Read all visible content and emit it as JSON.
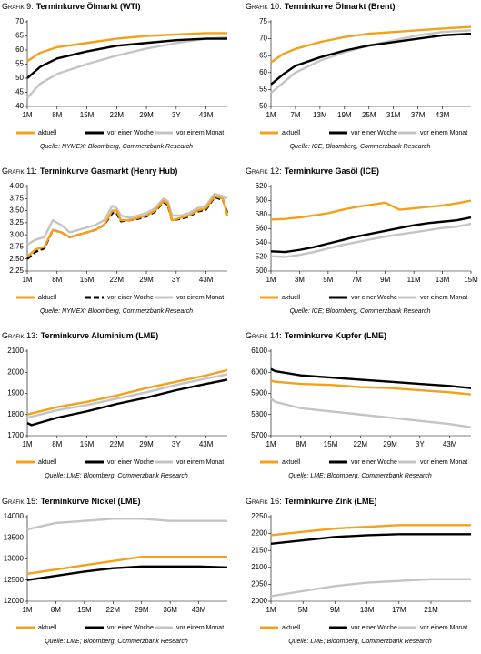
{
  "chart_data": [
    {
      "type": "line",
      "label": "Grafik 9:",
      "title": "Terminkurve Ölmarkt (WTI)",
      "source": "Quelle: NYMEX; Bloomberg, Commerzbank Research",
      "x": [
        1,
        4,
        8,
        15,
        22,
        29,
        36,
        43,
        48
      ],
      "xlim": [
        1,
        48
      ],
      "xticks": [
        {
          "value": 1,
          "label": "1M"
        },
        {
          "value": 8,
          "label": "8M"
        },
        {
          "value": 15,
          "label": "15M"
        },
        {
          "value": 22,
          "label": "22M"
        },
        {
          "value": 29,
          "label": "29M"
        },
        {
          "value": 36,
          "label": "3Y"
        },
        {
          "value": 43,
          "label": "43M"
        }
      ],
      "ylim": [
        40,
        70
      ],
      "yticks": [
        40,
        45,
        50,
        55,
        60,
        65,
        70
      ],
      "series": [
        {
          "name": "aktuell",
          "color": "#f5a01a",
          "values": [
            56,
            59,
            61,
            62.5,
            64,
            65,
            65.5,
            66,
            66
          ]
        },
        {
          "name": "vor einer Woche",
          "color": "#000000",
          "values": [
            50,
            54,
            57,
            59.5,
            61.5,
            62.5,
            63.5,
            64,
            64
          ]
        },
        {
          "name": "vor einem Monat",
          "color": "#c4c4c4",
          "values": [
            43,
            48,
            51.5,
            55,
            58,
            60.5,
            62.5,
            64,
            64.5
          ]
        }
      ]
    },
    {
      "type": "line",
      "label": "Grafik 10:",
      "title": "Terminkurve Ölmarkt (Brent)",
      "source": "Quelle: ICE, Bloomberg, Commerzbank Research",
      "x": [
        1,
        4,
        7,
        13,
        19,
        25,
        31,
        37,
        43,
        50
      ],
      "xlim": [
        1,
        50
      ],
      "xticks": [
        {
          "value": 1,
          "label": "1M"
        },
        {
          "value": 7,
          "label": "7M"
        },
        {
          "value": 13,
          "label": "13M"
        },
        {
          "value": 19,
          "label": "19M"
        },
        {
          "value": 25,
          "label": "25M"
        },
        {
          "value": 31,
          "label": "31M"
        },
        {
          "value": 37,
          "label": "37M"
        },
        {
          "value": 43,
          "label": "43M"
        }
      ],
      "ylim": [
        50,
        75
      ],
      "yticks": [
        50,
        55,
        60,
        65,
        70,
        75
      ],
      "series": [
        {
          "name": "aktuell",
          "color": "#f5a01a",
          "values": [
            63,
            65.5,
            67,
            69,
            70.5,
            71.5,
            72,
            72.5,
            73,
            73.5
          ]
        },
        {
          "name": "vor einer Woche",
          "color": "#000000",
          "values": [
            56.5,
            59.5,
            62,
            64.5,
            66.5,
            68,
            69,
            70,
            71,
            71.5
          ]
        },
        {
          "name": "vor einem Monat",
          "color": "#c4c4c4",
          "values": [
            54,
            57,
            60,
            63.5,
            66,
            68,
            69.5,
            71,
            72,
            72.5
          ]
        }
      ]
    },
    {
      "type": "line",
      "label": "Grafik 11:",
      "title": "Terminkurve Gasmarkt (Henry Hub)",
      "source": "Quelle: NYMEX; Bloomberg, Commerzbank Research",
      "x": [
        1,
        3,
        5,
        7,
        9,
        11,
        13,
        15,
        17,
        19,
        21,
        22,
        23,
        25,
        27,
        29,
        31,
        33,
        34,
        35,
        37,
        39,
        41,
        43,
        45,
        47,
        48
      ],
      "xlim": [
        1,
        48
      ],
      "xticks": [
        {
          "value": 1,
          "label": "1M"
        },
        {
          "value": 8,
          "label": "8M"
        },
        {
          "value": 15,
          "label": "15M"
        },
        {
          "value": 22,
          "label": "22M"
        },
        {
          "value": 29,
          "label": "29M"
        },
        {
          "value": 36,
          "label": "3Y"
        },
        {
          "value": 43,
          "label": "43M"
        }
      ],
      "ylim": [
        2.25,
        4
      ],
      "yticks": [
        2.25,
        {
          "value": 2.5,
          "label": "2.50"
        },
        2.75,
        {
          "value": 3,
          "label": "3.00"
        },
        3.25,
        {
          "value": 3.5,
          "label": "3.50"
        },
        3.75,
        {
          "value": 4,
          "label": "4.00"
        }
      ],
      "series": [
        {
          "name": "aktuell",
          "color": "#f5a01a",
          "values": [
            2.55,
            2.7,
            2.75,
            3.1,
            3.05,
            2.95,
            3.0,
            3.05,
            3.1,
            3.2,
            3.5,
            3.5,
            3.3,
            3.3,
            3.35,
            3.4,
            3.5,
            3.7,
            3.65,
            3.3,
            3.35,
            3.4,
            3.5,
            3.55,
            3.8,
            3.75,
            3.4
          ]
        },
        {
          "name": "vor einer Woche",
          "color": "#000000",
          "dashed": true,
          "values": [
            2.5,
            2.65,
            2.72,
            3.1,
            3.05,
            2.95,
            3.0,
            3.05,
            3.1,
            3.2,
            3.45,
            3.45,
            3.28,
            3.3,
            3.33,
            3.38,
            3.48,
            3.68,
            3.62,
            3.3,
            3.33,
            3.38,
            3.48,
            3.52,
            3.78,
            3.72,
            3.45
          ]
        },
        {
          "name": "vor einem Monat",
          "color": "#c4c4c4",
          "values": [
            2.8,
            2.9,
            2.95,
            3.3,
            3.2,
            3.05,
            3.1,
            3.15,
            3.2,
            3.3,
            3.6,
            3.55,
            3.4,
            3.35,
            3.4,
            3.45,
            3.55,
            3.75,
            3.7,
            3.4,
            3.4,
            3.45,
            3.55,
            3.6,
            3.85,
            3.8,
            3.75
          ]
        }
      ]
    },
    {
      "type": "line",
      "label": "Grafik 12:",
      "title": "Terminkurve Gasöl (ICE)",
      "source": "Quelle: ICE; Bloomberg, Commerzbank Research",
      "x": [
        1,
        2,
        3,
        4,
        5,
        6,
        7,
        8,
        9,
        10,
        11,
        12,
        13,
        14,
        15
      ],
      "xlim": [
        1,
        15
      ],
      "xticks": [
        {
          "value": 1,
          "label": "1M"
        },
        {
          "value": 3,
          "label": "3M"
        },
        {
          "value": 5,
          "label": "5M"
        },
        {
          "value": 7,
          "label": "7M"
        },
        {
          "value": 9,
          "label": "9M"
        },
        {
          "value": 11,
          "label": "11M"
        },
        {
          "value": 13,
          "label": "13M"
        },
        {
          "value": 15,
          "label": "15M"
        }
      ],
      "ylim": [
        500,
        620
      ],
      "yticks": [
        500,
        520,
        540,
        560,
        580,
        600,
        620
      ],
      "series": [
        {
          "name": "aktuell",
          "color": "#f5a01a",
          "values": [
            573,
            574,
            576,
            579,
            582,
            587,
            591,
            594,
            597,
            587,
            589,
            591,
            593,
            596,
            600
          ]
        },
        {
          "name": "vor einer Woche",
          "color": "#000000",
          "values": [
            528,
            527,
            530,
            534,
            539,
            544,
            549,
            553,
            557,
            561,
            565,
            568,
            570,
            572,
            576
          ]
        },
        {
          "name": "vor einem Monat",
          "color": "#c4c4c4",
          "values": [
            521,
            520,
            523,
            527,
            532,
            537,
            541,
            545,
            549,
            552,
            555,
            558,
            561,
            563,
            567
          ]
        }
      ]
    },
    {
      "type": "line",
      "label": "Grafik 13:",
      "title": "Terminkurve Aluminium (LME)",
      "source": "Quelle: LME; Bloomberg, Commerzbank Research",
      "x": [
        1,
        2,
        8,
        15,
        22,
        29,
        36,
        43,
        48
      ],
      "xlim": [
        1,
        48
      ],
      "xticks": [
        {
          "value": 1,
          "label": "1M"
        },
        {
          "value": 8,
          "label": "8M"
        },
        {
          "value": 15,
          "label": "15M"
        },
        {
          "value": 22,
          "label": "22M"
        },
        {
          "value": 29,
          "label": "29M"
        },
        {
          "value": 36,
          "label": "3Y"
        },
        {
          "value": 43,
          "label": "43M"
        }
      ],
      "ylim": [
        1700,
        2100
      ],
      "yticks": [
        1700,
        1800,
        1900,
        2000,
        2100
      ],
      "series": [
        {
          "name": "aktuell",
          "color": "#f5a01a",
          "values": [
            1800,
            1805,
            1835,
            1860,
            1890,
            1925,
            1955,
            1985,
            2010
          ]
        },
        {
          "name": "vor einer Woche",
          "color": "#000000",
          "values": [
            1760,
            1750,
            1785,
            1815,
            1850,
            1880,
            1915,
            1945,
            1965
          ]
        },
        {
          "name": "vor einem Monat",
          "color": "#c4c4c4",
          "values": [
            1785,
            1790,
            1820,
            1845,
            1875,
            1905,
            1940,
            1970,
            1990
          ]
        }
      ]
    },
    {
      "type": "line",
      "label": "Grafik 14:",
      "title": "Terminkurve Kupfer (LME)",
      "source": "Quelle: LME; Bloomberg, Commerzbank Research",
      "x": [
        1,
        2,
        8,
        15,
        22,
        29,
        36,
        43,
        48
      ],
      "xlim": [
        1,
        48
      ],
      "xticks": [
        {
          "value": 1,
          "label": "1M"
        },
        {
          "value": 8,
          "label": "8M"
        },
        {
          "value": 15,
          "label": "15M"
        },
        {
          "value": 22,
          "label": "22M"
        },
        {
          "value": 29,
          "label": "29M"
        },
        {
          "value": 36,
          "label": "3Y"
        },
        {
          "value": 43,
          "label": "43M"
        }
      ],
      "ylim": [
        5700,
        6100
      ],
      "yticks": [
        5700,
        5800,
        5900,
        6000,
        6100
      ],
      "series": [
        {
          "name": "aktuell",
          "color": "#f5a01a",
          "values": [
            5960,
            5955,
            5945,
            5940,
            5930,
            5925,
            5915,
            5905,
            5895
          ]
        },
        {
          "name": "vor einer Woche",
          "color": "#000000",
          "values": [
            6015,
            6005,
            5985,
            5975,
            5965,
            5955,
            5945,
            5935,
            5925
          ]
        },
        {
          "name": "vor einem Monat",
          "color": "#c4c4c4",
          "values": [
            5875,
            5860,
            5830,
            5815,
            5800,
            5785,
            5770,
            5755,
            5740
          ]
        }
      ]
    },
    {
      "type": "line",
      "label": "Grafik 15:",
      "title": "Terminkurve Nickel (LME)",
      "source": "Quelle: LME; Bloomberg, Commerzbank Research",
      "x": [
        1,
        8,
        15,
        22,
        29,
        36,
        43,
        50
      ],
      "xlim": [
        1,
        50
      ],
      "xticks": [
        {
          "value": 1,
          "label": "1M"
        },
        {
          "value": 8,
          "label": "8M"
        },
        {
          "value": 15,
          "label": "15M"
        },
        {
          "value": 22,
          "label": "22M"
        },
        {
          "value": 29,
          "label": "29M"
        },
        {
          "value": 36,
          "label": "36M"
        },
        {
          "value": 43,
          "label": "43M"
        }
      ],
      "ylim": [
        12000,
        14000
      ],
      "yticks": [
        12000,
        12500,
        13000,
        13500,
        14000
      ],
      "series": [
        {
          "name": "aktuell",
          "color": "#f5a01a",
          "values": [
            12650,
            12750,
            12850,
            12950,
            13050,
            13050,
            13050,
            13050
          ]
        },
        {
          "name": "vor einer Woche",
          "color": "#000000",
          "values": [
            12500,
            12600,
            12700,
            12780,
            12820,
            12820,
            12820,
            12800
          ]
        },
        {
          "name": "vor einem Monat",
          "color": "#c4c4c4",
          "values": [
            13700,
            13850,
            13900,
            13950,
            13950,
            13900,
            13900,
            13900
          ]
        }
      ]
    },
    {
      "type": "line",
      "label": "Grafik 16:",
      "title": "Terminkurve Zink (LME)",
      "source": "Quelle: LME; Bloomberg, Commerzbank Research",
      "x": [
        1,
        5,
        9,
        13,
        17,
        21,
        26
      ],
      "xlim": [
        1,
        26
      ],
      "xticks": [
        {
          "value": 1,
          "label": "1M"
        },
        {
          "value": 5,
          "label": "5M"
        },
        {
          "value": 9,
          "label": "9M"
        },
        {
          "value": 13,
          "label": "13M"
        },
        {
          "value": 17,
          "label": "17M"
        },
        {
          "value": 21,
          "label": "21M"
        }
      ],
      "ylim": [
        2000,
        2250
      ],
      "yticks": [
        2000,
        2050,
        2100,
        2150,
        2200,
        2250
      ],
      "series": [
        {
          "name": "aktuell",
          "color": "#f5a01a",
          "values": [
            2195,
            2205,
            2215,
            2220,
            2225,
            2225,
            2225
          ]
        },
        {
          "name": "vor einer Woche",
          "color": "#000000",
          "values": [
            2170,
            2180,
            2190,
            2195,
            2198,
            2198,
            2198
          ]
        },
        {
          "name": "vor einem Monat",
          "color": "#c4c4c4",
          "values": [
            2015,
            2030,
            2045,
            2055,
            2060,
            2065,
            2065
          ]
        }
      ]
    }
  ]
}
